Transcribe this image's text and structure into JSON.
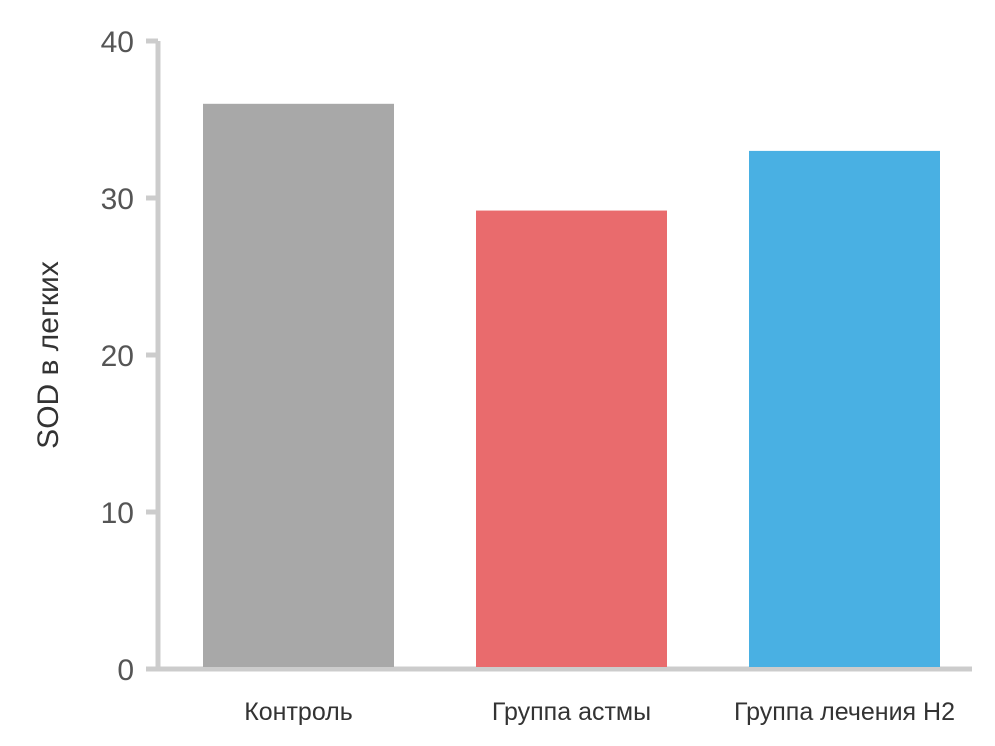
{
  "chart_data": {
    "type": "bar",
    "categories": [
      "Контроль",
      "Группа астмы",
      "Группа лечения Н2"
    ],
    "values": [
      36,
      29.2,
      33
    ],
    "colors": [
      "#a8a8a8",
      "#e96b6d",
      "#49b0e3"
    ],
    "ylabel": "SOD в легких",
    "xlabel": "",
    "ylim": [
      0,
      40
    ],
    "yticks": [
      "0",
      "10",
      "20",
      "30",
      "40"
    ],
    "grid": false,
    "legend": "none"
  }
}
